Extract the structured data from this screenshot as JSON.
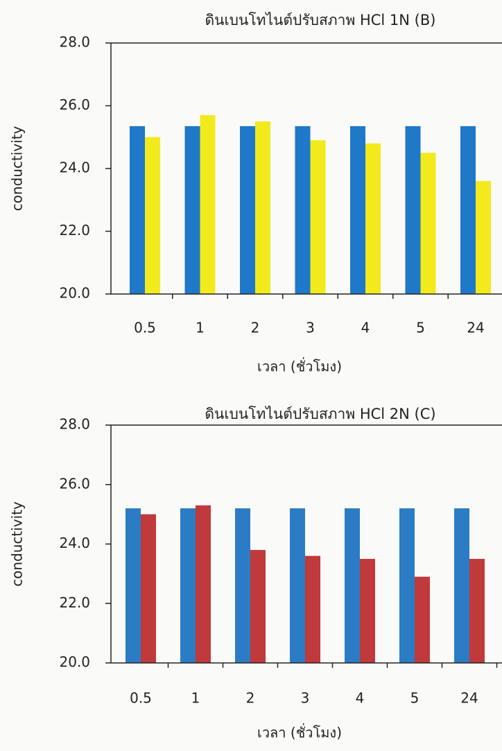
{
  "chart_data": [
    {
      "type": "bar",
      "title": "ดินเบนโทไนต์ปรับสภาพ HCl 1N (B)",
      "x_label": "เวลา (ชั่วโมง)",
      "y_label": "conductivity",
      "categories": [
        "0.5",
        "1",
        "2",
        "3",
        "4",
        "5",
        "24"
      ],
      "series": [
        {
          "color": "#1f78c8",
          "values": [
            25.35,
            25.35,
            25.35,
            25.35,
            25.35,
            25.35,
            25.35
          ]
        },
        {
          "color": "#f2ea1c",
          "values": [
            25.0,
            25.7,
            25.5,
            24.9,
            24.8,
            24.5,
            23.6
          ]
        }
      ],
      "ylim": [
        20,
        28
      ],
      "yticks": [
        {
          "value": 20,
          "label": "20.0"
        },
        {
          "value": 22,
          "label": "22.0"
        },
        {
          "value": 24,
          "label": "24.0"
        },
        {
          "value": 26,
          "label": "26.0"
        },
        {
          "value": 28,
          "label": "28.0"
        }
      ]
    },
    {
      "type": "bar",
      "title": "ดินเบนโทไนต์ปรับสภาพ HCl 2N (C)",
      "x_label": "เวลา (ชั่วโมง)",
      "y_label": "conductivity",
      "categories": [
        "0.5",
        "1",
        "2",
        "3",
        "4",
        "5",
        "24"
      ],
      "series": [
        {
          "color": "#2b7cc4",
          "values": [
            25.2,
            25.2,
            25.2,
            25.2,
            25.2,
            25.2,
            25.2
          ]
        },
        {
          "color": "#c0393b",
          "values": [
            25.0,
            25.3,
            23.8,
            23.6,
            23.5,
            22.9,
            23.5
          ]
        }
      ],
      "ylim": [
        20,
        28
      ],
      "yticks": [
        {
          "value": 20,
          "label": "20.0"
        },
        {
          "value": 22,
          "label": "22.0"
        },
        {
          "value": 24,
          "label": "24.0"
        },
        {
          "value": 26,
          "label": "26.0"
        },
        {
          "value": 28,
          "label": "28.0"
        }
      ]
    }
  ]
}
